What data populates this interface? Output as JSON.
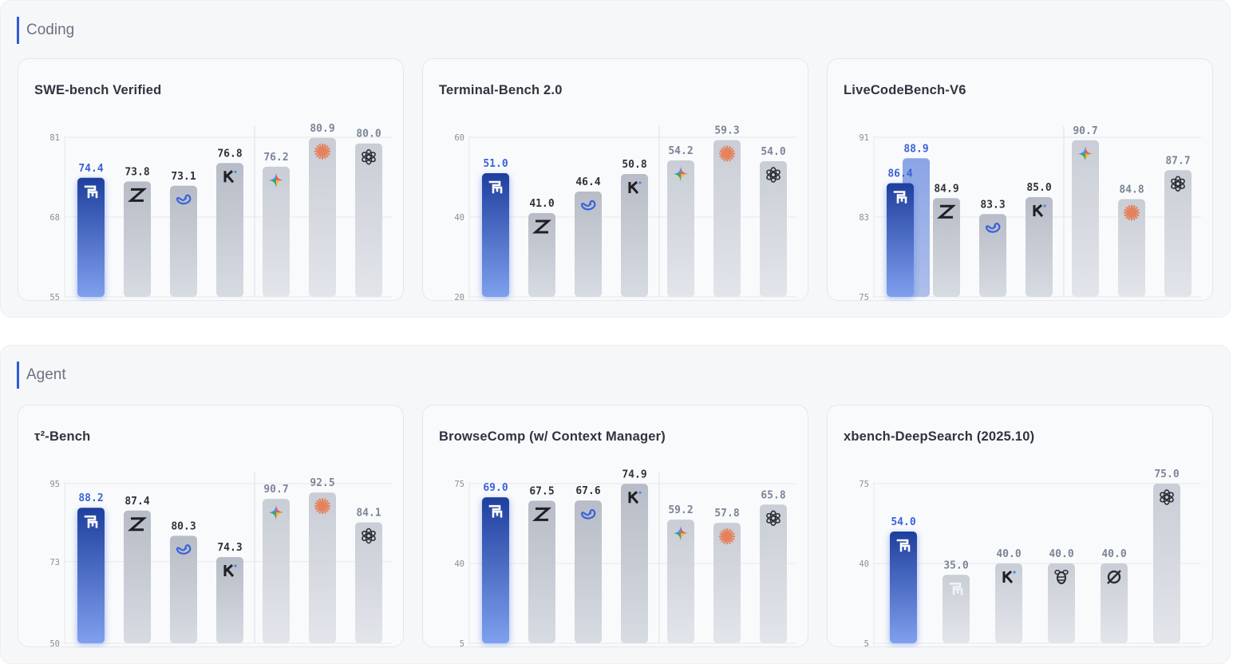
{
  "colors": {
    "highlight_label": "#3a63d8",
    "muted_label": "#7b8598",
    "dark_label": "#2e323b",
    "grid": "#e6e8ec",
    "bar_dark": "#1f3f9e",
    "bar_light": "#7fa0ee"
  },
  "sections": [
    {
      "id": "coding",
      "title": "Coding"
    },
    {
      "id": "agent",
      "title": "Agent"
    }
  ],
  "chart_data": [
    {
      "type": "bar",
      "section": "coding",
      "title": "SWE-bench Verified",
      "ylim": [
        55,
        81
      ],
      "yticks": [
        "81",
        "68",
        "55"
      ],
      "bars": [
        {
          "value": 74.4,
          "label": "74.4",
          "icon": "brand-s-icon",
          "style": "highlight",
          "label_color": "highlight"
        },
        {
          "value": 73.8,
          "label": "73.8",
          "icon": "z-logo-icon",
          "style": "gray",
          "label_color": "dark"
        },
        {
          "value": 73.1,
          "label": "73.1",
          "icon": "whale-icon",
          "style": "gray",
          "label_color": "dark"
        },
        {
          "value": 76.8,
          "label": "76.8",
          "icon": "k-logo-icon",
          "style": "gray",
          "label_color": "dark",
          "divider_after": true
        },
        {
          "value": 76.2,
          "label": "76.2",
          "icon": "sparkle-icon",
          "style": "light",
          "label_color": "muted"
        },
        {
          "value": 80.9,
          "label": "80.9",
          "icon": "starburst-icon",
          "style": "light",
          "label_color": "muted"
        },
        {
          "value": 80.0,
          "label": "80.0",
          "icon": "knot-icon",
          "style": "light",
          "label_color": "muted"
        }
      ]
    },
    {
      "type": "bar",
      "section": "coding",
      "title": "Terminal-Bench 2.0",
      "ylim": [
        20,
        60
      ],
      "yticks": [
        "60",
        "40",
        "20"
      ],
      "bars": [
        {
          "value": 51.0,
          "label": "51.0",
          "icon": "brand-s-icon",
          "style": "highlight",
          "label_color": "highlight"
        },
        {
          "value": 41.0,
          "label": "41.0",
          "icon": "z-logo-icon",
          "style": "gray",
          "label_color": "dark"
        },
        {
          "value": 46.4,
          "label": "46.4",
          "icon": "whale-icon",
          "style": "gray",
          "label_color": "dark"
        },
        {
          "value": 50.8,
          "label": "50.8",
          "icon": "k-logo-icon",
          "style": "gray",
          "label_color": "dark",
          "divider_after": true
        },
        {
          "value": 54.2,
          "label": "54.2",
          "icon": "sparkle-icon",
          "style": "light",
          "label_color": "muted"
        },
        {
          "value": 59.3,
          "label": "59.3",
          "icon": "starburst-icon",
          "style": "light",
          "label_color": "muted"
        },
        {
          "value": 54.0,
          "label": "54.0",
          "icon": "knot-icon",
          "style": "light",
          "label_color": "muted"
        }
      ]
    },
    {
      "type": "bar",
      "section": "coding",
      "title": "LiveCodeBench-V6",
      "ylim": [
        75,
        91
      ],
      "yticks": [
        "91",
        "83",
        "75"
      ],
      "bars": [
        {
          "value": 86.4,
          "label": "86.4",
          "icon": "brand-s-icon",
          "style": "highlight",
          "label_color": "highlight",
          "overlay": {
            "value": 88.9,
            "label": "88.9"
          }
        },
        {
          "value": 84.9,
          "label": "84.9",
          "icon": "z-logo-icon",
          "style": "gray",
          "label_color": "dark"
        },
        {
          "value": 83.3,
          "label": "83.3",
          "icon": "whale-icon",
          "style": "gray",
          "label_color": "dark"
        },
        {
          "value": 85.0,
          "label": "85.0",
          "icon": "k-logo-icon",
          "style": "gray",
          "label_color": "dark",
          "divider_after": true
        },
        {
          "value": 90.7,
          "label": "90.7",
          "icon": "sparkle-icon",
          "style": "light",
          "label_color": "muted"
        },
        {
          "value": 84.8,
          "label": "84.8",
          "icon": "starburst-icon",
          "style": "light",
          "label_color": "muted"
        },
        {
          "value": 87.7,
          "label": "87.7",
          "icon": "knot-icon",
          "style": "light",
          "label_color": "muted"
        }
      ]
    },
    {
      "type": "bar",
      "section": "agent",
      "title": "τ²-Bench",
      "ylim": [
        50,
        95
      ],
      "yticks": [
        "95",
        "73",
        "50"
      ],
      "bars": [
        {
          "value": 88.2,
          "label": "88.2",
          "icon": "brand-s-icon",
          "style": "highlight",
          "label_color": "highlight"
        },
        {
          "value": 87.4,
          "label": "87.4",
          "icon": "z-logo-icon",
          "style": "gray",
          "label_color": "dark"
        },
        {
          "value": 80.3,
          "label": "80.3",
          "icon": "whale-icon",
          "style": "gray",
          "label_color": "dark"
        },
        {
          "value": 74.3,
          "label": "74.3",
          "icon": "k-logo-icon",
          "style": "gray",
          "label_color": "dark",
          "divider_after": true
        },
        {
          "value": 90.7,
          "label": "90.7",
          "icon": "sparkle-icon",
          "style": "light",
          "label_color": "muted"
        },
        {
          "value": 92.5,
          "label": "92.5",
          "icon": "starburst-icon",
          "style": "light",
          "label_color": "muted"
        },
        {
          "value": 84.1,
          "label": "84.1",
          "icon": "knot-icon",
          "style": "light",
          "label_color": "muted"
        }
      ]
    },
    {
      "type": "bar",
      "section": "agent",
      "title": "BrowseComp (w/ Context Manager)",
      "ylim": [
        5,
        75
      ],
      "yticks": [
        "75",
        "40",
        "5"
      ],
      "bars": [
        {
          "value": 69.0,
          "label": "69.0",
          "icon": "brand-s-icon",
          "style": "highlight",
          "label_color": "highlight"
        },
        {
          "value": 67.5,
          "label": "67.5",
          "icon": "z-logo-icon",
          "style": "gray",
          "label_color": "dark"
        },
        {
          "value": 67.6,
          "label": "67.6",
          "icon": "whale-icon",
          "style": "gray",
          "label_color": "dark"
        },
        {
          "value": 74.9,
          "label": "74.9",
          "icon": "k-logo-icon",
          "style": "gray",
          "label_color": "dark",
          "divider_after": true
        },
        {
          "value": 59.2,
          "label": "59.2",
          "icon": "sparkle-icon",
          "style": "light",
          "label_color": "muted"
        },
        {
          "value": 57.8,
          "label": "57.8",
          "icon": "starburst-icon",
          "style": "light",
          "label_color": "muted"
        },
        {
          "value": 65.8,
          "label": "65.8",
          "icon": "knot-icon",
          "style": "light",
          "label_color": "muted"
        }
      ]
    },
    {
      "type": "bar",
      "section": "agent",
      "title": "xbench-DeepSearch (2025.10)",
      "ylim": [
        5,
        75
      ],
      "yticks": [
        "75",
        "40",
        "5"
      ],
      "bars": [
        {
          "value": 54.0,
          "label": "54.0",
          "icon": "brand-s-icon",
          "style": "highlight",
          "label_color": "highlight"
        },
        {
          "value": 35.0,
          "label": "35.0",
          "icon": "brand-s-faded-icon",
          "style": "light",
          "label_color": "muted"
        },
        {
          "value": 40.0,
          "label": "40.0",
          "icon": "k-logo-icon",
          "style": "light",
          "label_color": "muted"
        },
        {
          "value": 40.0,
          "label": "40.0",
          "icon": "bee-icon",
          "style": "light",
          "label_color": "muted"
        },
        {
          "value": 40.0,
          "label": "40.0",
          "icon": "ring-slash-icon",
          "style": "light",
          "label_color": "muted"
        },
        {
          "value": 75.0,
          "label": "75.0",
          "icon": "knot-icon",
          "style": "light",
          "label_color": "muted"
        }
      ]
    }
  ]
}
